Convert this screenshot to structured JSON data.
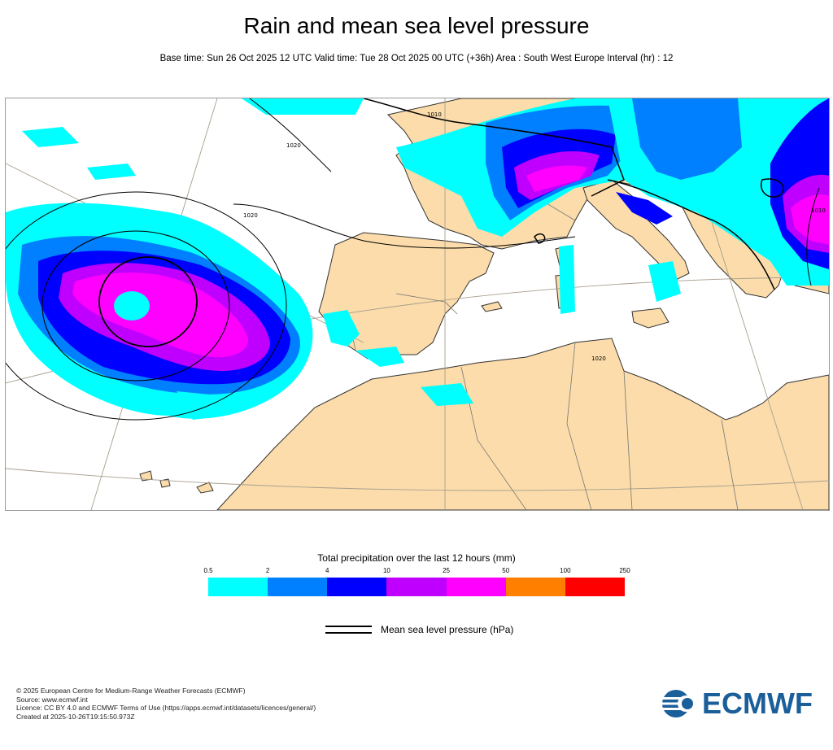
{
  "header": {
    "title": "Rain and mean sea level pressure",
    "subtitle": "Base time: Sun 26 Oct 2025 12 UTC Valid time: Tue 28 Oct 2025 00 UTC (+36h) Area : South West Europe Interval (hr) : 12"
  },
  "map": {
    "region": "South West Europe",
    "isobar_labels": [
      "1010",
      "1020",
      "1020",
      "1010",
      "1020"
    ],
    "colors": {
      "land": "#fbdcaa",
      "sea": "#ffffff",
      "coast": "#333333",
      "border": "#777777",
      "graticule": "#a89f8e",
      "isobar": "#000000"
    }
  },
  "legend": {
    "title": "Total precipitation over the last 12 hours (mm)",
    "ticks": [
      "0.5",
      "2",
      "4",
      "10",
      "25",
      "50",
      "100",
      "250"
    ],
    "colors": [
      "#00ffff",
      "#0080ff",
      "#0000ff",
      "#bf00ff",
      "#ff00ff",
      "#ff8000",
      "#ff0000"
    ],
    "mslp_label": "Mean sea level pressure (hPa)"
  },
  "footer": {
    "lines": [
      "© 2025 European Centre for Medium-Range Weather Forecasts (ECMWF)",
      "Source: www.ecmwf.int",
      "Licence: CC BY 4.0 and ECMWF Terms of Use (https://apps.ecmwf.int/datasets/licences/general/)",
      "Created at 2025-10-26T19:15:50.973Z"
    ],
    "logo_text": "ECMWF",
    "logo_icon": "ecmwf-logo-icon"
  }
}
